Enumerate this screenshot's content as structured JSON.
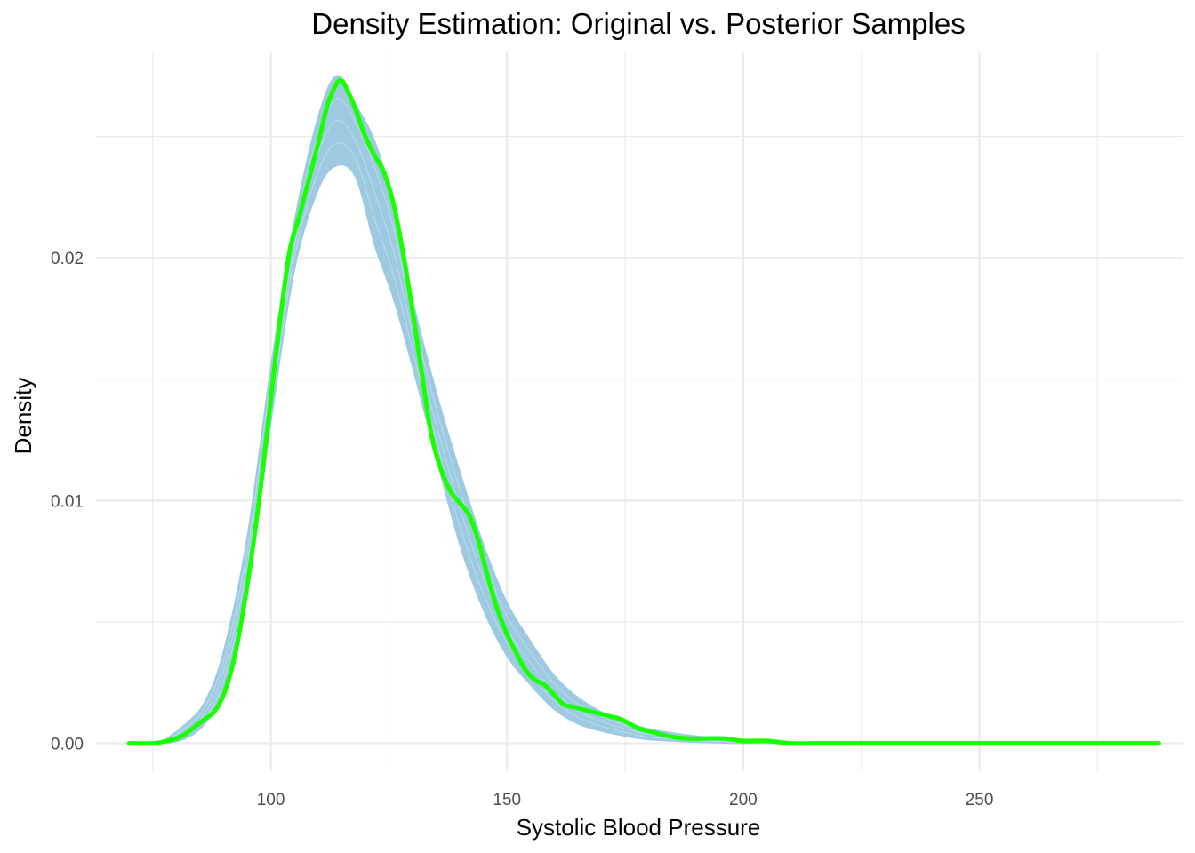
{
  "chart_data": {
    "type": "area",
    "title": "Density Estimation: Original vs. Posterior Samples",
    "xlabel": "Systolic Blood Pressure",
    "ylabel": "Density",
    "xlim": [
      63,
      293
    ],
    "ylim": [
      -0.00115,
      0.0285
    ],
    "x_ticks": [
      100,
      150,
      200,
      250
    ],
    "x_tick_labels": [
      "100",
      "150",
      "200",
      "250"
    ],
    "x_minor_gridlines": [
      75,
      125,
      175,
      225,
      275
    ],
    "y_ticks": [
      0.0,
      0.01,
      0.02
    ],
    "y_tick_labels": [
      "0.00",
      "0.01",
      "0.02"
    ],
    "y_minor_gridlines": [
      0.005,
      0.015,
      0.025
    ],
    "grid": true,
    "legend": "none",
    "colors": {
      "posterior": "#9ecae1",
      "original": "#1aff00",
      "grid": "#ebebeb"
    },
    "series": [
      {
        "role": "posterior_band",
        "x": [
          78,
          82,
          86,
          90,
          95,
          100,
          105,
          110,
          114,
          118,
          122,
          126,
          130,
          135,
          140,
          145,
          150,
          155,
          160,
          165,
          170,
          175,
          180,
          190,
          200,
          210,
          220
        ],
        "y_upper": [
          0.0002,
          0.0008,
          0.0017,
          0.0038,
          0.0085,
          0.0155,
          0.0215,
          0.0258,
          0.0275,
          0.0263,
          0.0248,
          0.0222,
          0.0183,
          0.0145,
          0.0112,
          0.0082,
          0.0058,
          0.0042,
          0.0028,
          0.0019,
          0.0013,
          0.0009,
          0.0006,
          0.0003,
          0.00015,
          5e-05,
          0.0
        ],
        "y_lower": [
          0.0,
          0.0002,
          0.0008,
          0.0022,
          0.0062,
          0.0132,
          0.0195,
          0.0228,
          0.0238,
          0.0233,
          0.0205,
          0.0183,
          0.0155,
          0.0118,
          0.0082,
          0.0055,
          0.0036,
          0.0024,
          0.0014,
          0.0008,
          0.0005,
          0.0003,
          0.00015,
          5e-05,
          0.0,
          0.0,
          0.0
        ]
      },
      {
        "role": "original",
        "x": [
          70,
          75,
          78,
          80,
          82,
          84,
          86,
          88,
          90,
          92,
          94,
          96,
          98,
          100,
          102,
          104,
          106,
          108,
          110,
          112,
          114,
          115,
          116,
          118,
          120,
          122,
          124,
          126,
          128,
          130,
          132,
          134,
          136,
          138,
          140,
          142,
          144,
          146,
          148,
          150,
          152,
          154,
          156,
          158,
          160,
          162,
          164,
          166,
          168,
          170,
          172,
          174,
          176,
          178,
          180,
          184,
          188,
          192,
          196,
          200,
          205,
          210,
          215,
          220,
          230,
          240,
          260,
          288
        ],
        "y": [
          0.0,
          0.0,
          0.0001,
          0.0002,
          0.0004,
          0.0007,
          0.001,
          0.0013,
          0.002,
          0.0033,
          0.0053,
          0.0078,
          0.0108,
          0.0142,
          0.0175,
          0.0203,
          0.0217,
          0.0232,
          0.0247,
          0.0263,
          0.0272,
          0.0273,
          0.027,
          0.0261,
          0.025,
          0.0242,
          0.0235,
          0.0222,
          0.0202,
          0.0178,
          0.0152,
          0.0127,
          0.0113,
          0.0104,
          0.0099,
          0.0094,
          0.0083,
          0.0068,
          0.0055,
          0.0045,
          0.0037,
          0.003,
          0.0026,
          0.0024,
          0.002,
          0.0016,
          0.0015,
          0.0014,
          0.0013,
          0.0012,
          0.0011,
          0.001,
          0.0008,
          0.0006,
          0.0005,
          0.0003,
          0.0002,
          0.0002,
          0.0002,
          0.0001,
          0.0001,
          0.0,
          0.0,
          0.0,
          0.0,
          0.0,
          0.0,
          0.0
        ]
      }
    ]
  }
}
